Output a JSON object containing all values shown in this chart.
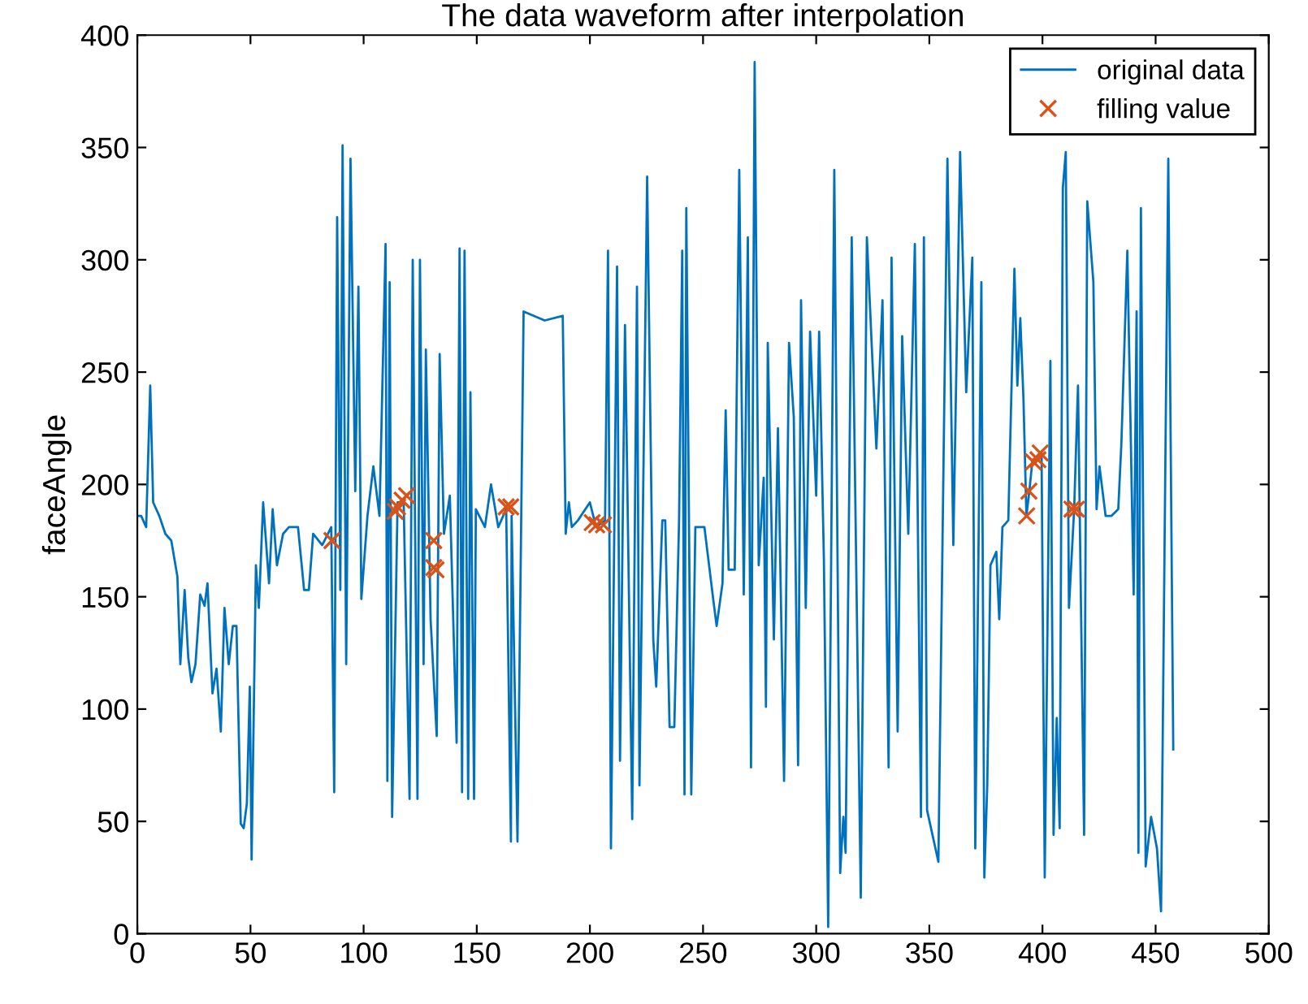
{
  "chart_data": {
    "type": "line",
    "title": "The data waveform after interpolation",
    "ylabel": "faceAngle",
    "xlim": [
      0,
      500
    ],
    "xticks": [
      0,
      50,
      100,
      150,
      200,
      250,
      300,
      350,
      400,
      450,
      500
    ],
    "ylim": [
      0,
      400
    ],
    "yticks": [
      0,
      50,
      100,
      150,
      200,
      250,
      300,
      350,
      400
    ],
    "grid": false,
    "legend": "top right",
    "series": [
      {
        "name": "original data",
        "color": "#0072bd",
        "marker": "none",
        "line_style": "solid",
        "x": [
          0,
          1.7,
          3.9,
          5.7,
          7,
          9.7,
          12.4,
          15,
          17.7,
          19,
          20.9,
          22.5,
          23.9,
          25.7,
          27.8,
          29.7,
          31,
          33.2,
          35,
          36.9,
          38.5,
          40.4,
          42.2,
          43.8,
          45.7,
          47,
          48.4,
          49.7,
          50.5,
          52.4,
          53.7,
          55.6,
          58.2,
          59.8,
          61.7,
          64.4,
          67,
          71,
          73.7,
          75.8,
          77.7,
          81.7,
          85.7,
          87,
          88.3,
          89.7,
          90.7,
          92.3,
          94.2,
          96.3,
          97.7,
          99,
          101.7,
          104.3,
          107,
          109.7,
          110.5,
          111.5,
          112.6,
          115,
          117.7,
          120.3,
          121.7,
          123.8,
          124.9,
          126.5,
          127.5,
          129.6,
          132.3,
          133.6,
          135.5,
          138.1,
          141.1,
          142.4,
          143.5,
          144.6,
          146.2,
          147.2,
          148.8,
          149.6,
          153.6,
          156.3,
          159.5,
          163,
          165.1,
          165.4,
          168,
          170.7,
          180,
          188,
          189.3,
          190.7,
          192,
          194.7,
          200,
          202.7,
          206.7,
          208,
          209.3,
          212,
          213.3,
          215.5,
          218.7,
          220.8,
          221.9,
          225.3,
          228,
          229.3,
          232,
          233.3,
          235.2,
          237.3,
          239.4,
          240.8,
          241.8,
          242.6,
          244.8,
          246.6,
          250.6,
          254.6,
          256,
          258.6,
          260,
          261.3,
          264,
          266,
          268,
          269.8,
          271.2,
          272.8,
          274.6,
          276.8,
          277.8,
          278.6,
          281.3,
          283.1,
          285.8,
          288,
          290.1,
          292,
          293.3,
          295.4,
          297.3,
          300,
          301.3,
          303.4,
          305.3,
          308,
          310.6,
          312,
          313,
          315.7,
          319.7,
          322.4,
          326.6,
          329.3,
          332,
          333.3,
          336,
          338,
          340.7,
          343.6,
          346.3,
          347.6,
          349,
          354,
          358,
          360.6,
          363.6,
          366.3,
          369,
          370.3,
          373,
          374.3,
          375.6,
          377,
          379.6,
          380.9,
          382.3,
          384.9,
          387.6,
          388.9,
          390.2,
          391.6,
          392.9,
          394.2,
          395.6,
          398.2,
          399.6,
          401,
          403.5,
          404.9,
          406.3,
          407.6,
          409,
          410.3,
          411.7,
          414,
          415.7,
          418.4,
          419.8,
          422.5,
          423.9,
          425.2,
          427.9,
          430.5,
          433.5,
          434.9,
          437.5,
          440.3,
          441.6,
          442.4,
          443.5,
          445.6,
          448,
          450.6,
          452.4,
          455.6,
          457.8
        ],
        "values": [
          186,
          186,
          181,
          244,
          192,
          186,
          178,
          175,
          159,
          120,
          153,
          123,
          112,
          120,
          151,
          146,
          156,
          107,
          118,
          90,
          145,
          120,
          137,
          137,
          49,
          47,
          58,
          110,
          33,
          164,
          145,
          192,
          156,
          189,
          164,
          178,
          181,
          181,
          153,
          153,
          178,
          173,
          181,
          63,
          319,
          153,
          351,
          120,
          345,
          197,
          288,
          149,
          186,
          208,
          186,
          307,
          68,
          290,
          52,
          192,
          192,
          60,
          300,
          60,
          300,
          120,
          260,
          140,
          88,
          258,
          178,
          195,
          85,
          305,
          63,
          304,
          60,
          241,
          60,
          189,
          181,
          200,
          181,
          189,
          41,
          186,
          41,
          277,
          273,
          275,
          178,
          192,
          181,
          184,
          192,
          181,
          184,
          304,
          38,
          297,
          77,
          271,
          51,
          288,
          66,
          337,
          131,
          110,
          184,
          184,
          92,
          92,
          184,
          304,
          62,
          323,
          62,
          181,
          181,
          148,
          137,
          156,
          233,
          162,
          162,
          340,
          151,
          310,
          74,
          388,
          164,
          203,
          101,
          263,
          131,
          225,
          68,
          263,
          230,
          75,
          282,
          145,
          268,
          195,
          268,
          167,
          3,
          340,
          27,
          52,
          36,
          310,
          16,
          310,
          216,
          282,
          74,
          301,
          90,
          266,
          178,
          307,
          52,
          310,
          55,
          32,
          345,
          173,
          348,
          241,
          301,
          38,
          290,
          25,
          66,
          164,
          170,
          140,
          181,
          184,
          296,
          244,
          274,
          238,
          186,
          197,
          211,
          211,
          214,
          25,
          255,
          44,
          96,
          47,
          332,
          348,
          145,
          189,
          244,
          44,
          326,
          290,
          189,
          208,
          186,
          186,
          189,
          219,
          304,
          151,
          277,
          36,
          323,
          30,
          52,
          38,
          10,
          345,
          82
        ]
      },
      {
        "name": "filling value",
        "type": "scatter",
        "color": "#d95319",
        "marker": "cross",
        "x": [
          86,
          114,
          115,
          117,
          119,
          131,
          131,
          132,
          163,
          165,
          201,
          203,
          206,
          393,
          394,
          396,
          398,
          399,
          413,
          415
        ],
        "values": [
          175,
          188,
          190,
          193,
          195,
          175,
          163,
          162,
          190,
          190,
          183,
          182,
          182,
          186,
          197,
          210,
          211,
          214,
          189,
          189
        ]
      }
    ]
  }
}
